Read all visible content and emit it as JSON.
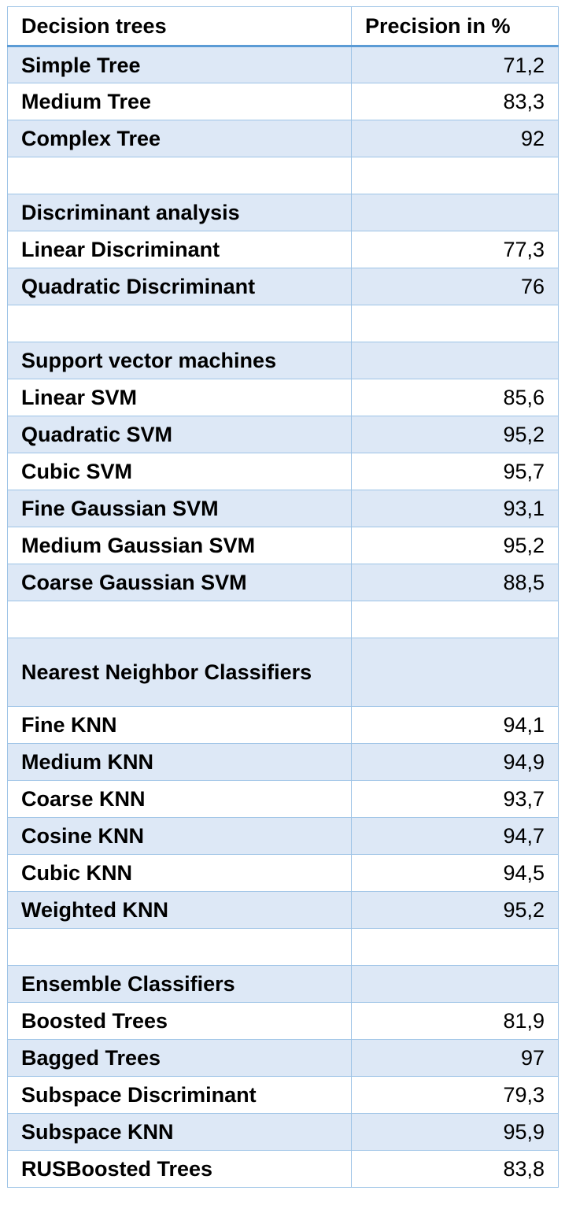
{
  "table": {
    "headers": [
      "Decision trees",
      "Precision in %"
    ],
    "rows": [
      {
        "label": "Simple Tree",
        "value": "71,2"
      },
      {
        "label": "Medium Tree",
        "value": "83,3"
      },
      {
        "label": "Complex Tree",
        "value": "92"
      },
      {
        "label": "",
        "value": ""
      },
      {
        "label": "Discriminant analysis",
        "value": ""
      },
      {
        "label": "Linear Discriminant",
        "value": "77,3"
      },
      {
        "label": "Quadratic Discriminant",
        "value": "76"
      },
      {
        "label": "",
        "value": ""
      },
      {
        "label": "Support vector machines",
        "value": ""
      },
      {
        "label": "Linear SVM",
        "value": "85,6"
      },
      {
        "label": "Quadratic SVM",
        "value": "95,2"
      },
      {
        "label": "Cubic SVM",
        "value": "95,7"
      },
      {
        "label": "Fine Gaussian SVM",
        "value": "93,1"
      },
      {
        "label": "Medium Gaussian SVM",
        "value": "95,2"
      },
      {
        "label": "Coarse Gaussian SVM",
        "value": "88,5"
      },
      {
        "label": "",
        "value": ""
      },
      {
        "label": "Nearest Neighbor Classifiers",
        "value": ""
      },
      {
        "label": "Fine KNN",
        "value": "94,1"
      },
      {
        "label": "Medium KNN",
        "value": "94,9"
      },
      {
        "label": "Coarse KNN",
        "value": "93,7"
      },
      {
        "label": "Cosine KNN",
        "value": "94,7"
      },
      {
        "label": "Cubic KNN",
        "value": "94,5"
      },
      {
        "label": "Weighted KNN",
        "value": "95,2"
      },
      {
        "label": "",
        "value": ""
      },
      {
        "label": "Ensemble Classifiers",
        "value": ""
      },
      {
        "label": "Boosted Trees",
        "value": "81,9"
      },
      {
        "label": "Bagged Trees",
        "value": "97"
      },
      {
        "label": "Subspace Discriminant",
        "value": "79,3"
      },
      {
        "label": "Subspace KNN",
        "value": "95,9"
      },
      {
        "label": "RUSBoosted Trees",
        "value": "83,8"
      }
    ]
  }
}
